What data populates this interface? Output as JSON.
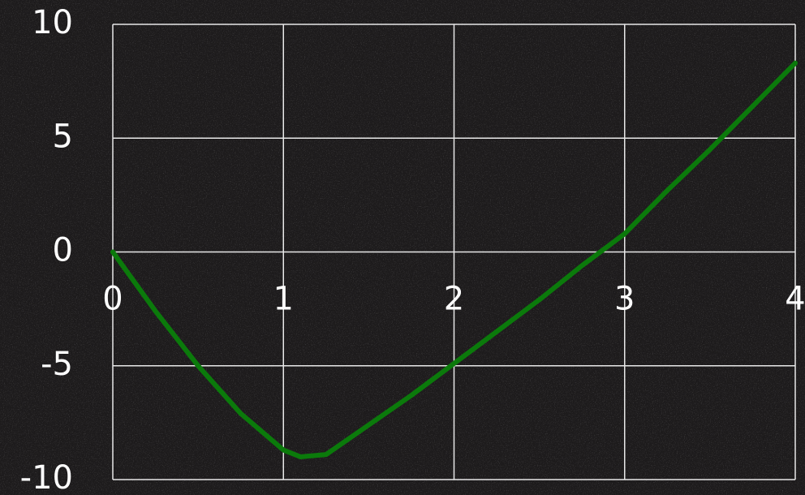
{
  "chart_data": {
    "type": "line",
    "x": [
      0,
      0.25,
      0.5,
      0.75,
      1,
      1.1,
      1.25,
      1.5,
      1.75,
      2,
      2.25,
      2.5,
      2.75,
      3,
      3.25,
      3.5,
      3.75,
      4
    ],
    "series": [
      {
        "color": "#0b7a0b",
        "values": [
          0,
          -2.6,
          -5,
          -7.1,
          -8.7,
          -9,
          -8.9,
          -7.6,
          -6.3,
          -4.9,
          -3.5,
          -2.1,
          -0.6,
          0.8,
          2.7,
          4.5,
          6.4,
          8.3
        ]
      }
    ],
    "xlim": [
      0,
      4
    ],
    "xticks": [
      0,
      1,
      2,
      3,
      4
    ],
    "ylim": [
      -10,
      10
    ],
    "yticks": [
      -10,
      -5,
      0,
      5,
      10
    ],
    "grid": true
  }
}
